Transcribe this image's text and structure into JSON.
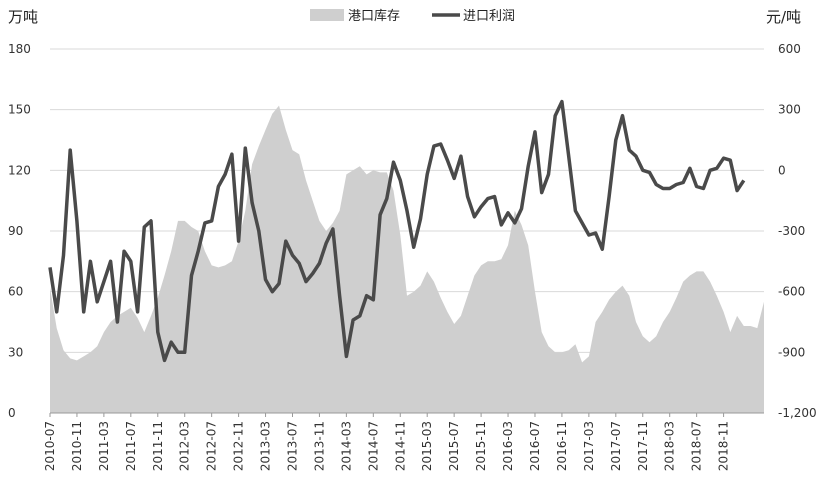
{
  "chart_data": {
    "type": "area+line",
    "title": "",
    "left_axis_unit": "万吨",
    "right_axis_unit": "元/吨",
    "left_ylim": [
      0,
      180
    ],
    "left_yticks": [
      0,
      30,
      60,
      90,
      120,
      150,
      180
    ],
    "right_ylim": [
      -1200,
      600
    ],
    "right_yticks": [
      -1200,
      -900,
      -600,
      -300,
      0,
      300,
      600
    ],
    "right_ytick_labels": [
      "-1,200",
      "-900",
      "-600",
      "-300",
      "0",
      "300",
      "600"
    ],
    "grid": "horizontal",
    "legend_position": "top-center",
    "x_ticks": [
      "2010-07",
      "2010-11",
      "2011-03",
      "2011-07",
      "2011-11",
      "2012-03",
      "2012-07",
      "2012-11",
      "2013-03",
      "2013-07",
      "2013-11",
      "2014-03",
      "2014-07",
      "2014-11",
      "2015-03",
      "2015-07",
      "2015-11",
      "2016-03",
      "2016-07",
      "2016-11",
      "2017-03",
      "2017-07",
      "2017-11",
      "2018-03",
      "2018-07",
      "2018-11"
    ],
    "series": [
      {
        "name": "港口库存",
        "kind": "area",
        "axis": "left",
        "color": "#cfcfcf",
        "start": "2010-07",
        "values": [
          62,
          42,
          31,
          27,
          26,
          28,
          30,
          33,
          40,
          45,
          48,
          50,
          52,
          47,
          40,
          48,
          57,
          68,
          80,
          95,
          95,
          92,
          90,
          80,
          73,
          72,
          73,
          75,
          85,
          100,
          123,
          132,
          140,
          148,
          152,
          140,
          130,
          128,
          115,
          105,
          95,
          90,
          94,
          100,
          118,
          120,
          122,
          118,
          120,
          119,
          119,
          110,
          88,
          58,
          60,
          63,
          70,
          65,
          57,
          50,
          44,
          48,
          58,
          68,
          73,
          75,
          75,
          76,
          83,
          100,
          93,
          83,
          60,
          40,
          33,
          30,
          30,
          31,
          34,
          25,
          28,
          45,
          50,
          56,
          60,
          63,
          58,
          45,
          38,
          35,
          38,
          45,
          50,
          57,
          65,
          68,
          70,
          70,
          65,
          58,
          50,
          40,
          48,
          43,
          43,
          42,
          55
        ]
      },
      {
        "name": "进口利润",
        "kind": "line",
        "axis": "right",
        "color": "#4a4a4a",
        "start": "2010-07",
        "values": [
          -480,
          -700,
          -420,
          100,
          -250,
          -700,
          -450,
          -650,
          -550,
          -450,
          -750,
          -400,
          -450,
          -700,
          -280,
          -250,
          -800,
          -940,
          -850,
          -900,
          -900,
          -520,
          -400,
          -260,
          -250,
          -80,
          -20,
          80,
          -350,
          110,
          -160,
          -300,
          -540,
          -600,
          -560,
          -350,
          -420,
          -460,
          -550,
          -510,
          -460,
          -360,
          -290,
          -620,
          -920,
          -740,
          -720,
          -620,
          -640,
          -220,
          -140,
          40,
          -50,
          -200,
          -380,
          -240,
          -20,
          120,
          130,
          50,
          -40,
          70,
          -130,
          -230,
          -180,
          -140,
          -130,
          -270,
          -210,
          -260,
          -190,
          20,
          190,
          -110,
          -20,
          270,
          340,
          70,
          -200,
          -260,
          -320,
          -310,
          -390,
          -130,
          150,
          270,
          100,
          70,
          0,
          -10,
          -70,
          -90,
          -90,
          -70,
          -60,
          10,
          -80,
          -90,
          0,
          10,
          60,
          50,
          -100,
          -50
        ]
      }
    ]
  }
}
